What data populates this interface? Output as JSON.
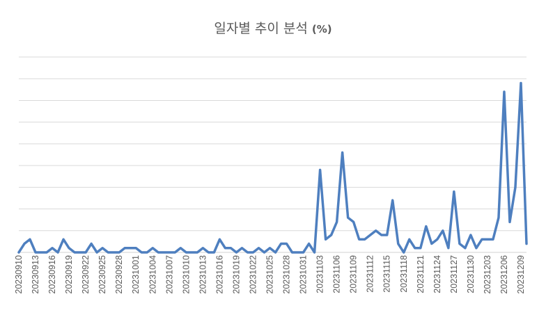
{
  "chart_data": {
    "type": "line",
    "title": "일자별 추이 분석",
    "title_unit": "(%)",
    "xlabel": "",
    "ylabel": "",
    "ylim": [
      0,
      9
    ],
    "grid": true,
    "gridlines": 9,
    "line_color": "#4e7fbf",
    "tick_labels": [
      "20230910",
      "20230913",
      "20230916",
      "20230919",
      "20230922",
      "20230925",
      "20230928",
      "20231001",
      "20231004",
      "20231007",
      "20231010",
      "20231013",
      "20231016",
      "20231019",
      "20231022",
      "20231025",
      "20231028",
      "20231031",
      "20231103",
      "20231106",
      "20231109",
      "20231112",
      "20231115",
      "20231118",
      "20231121",
      "20231124",
      "20231127",
      "20231130",
      "20231203",
      "20231206",
      "20231209"
    ],
    "series": [
      {
        "values": [
          0,
          0.4,
          0.6,
          0,
          0,
          0,
          0.2,
          0,
          0.6,
          0.2,
          0,
          0,
          0,
          0.4,
          0,
          0.2,
          0,
          0,
          0,
          0.2,
          0.2,
          0.2,
          0,
          0,
          0.2,
          0,
          0,
          0,
          0,
          0.2,
          0,
          0,
          0,
          0.2,
          0,
          0,
          0.6,
          0.2,
          0.2,
          0,
          0.2,
          0,
          0,
          0.2,
          0,
          0.2,
          0,
          0.4,
          0.4,
          0,
          0,
          0,
          0.4,
          0,
          3.8,
          0.6,
          0.8,
          1.4,
          4.6,
          1.6,
          1.4,
          0.6,
          0.6,
          0.8,
          1.0,
          0.8,
          0.8,
          2.4,
          0.4,
          0,
          0.6,
          0.2,
          0.2,
          1.2,
          0.4,
          0.6,
          1.0,
          0.2,
          2.8,
          0.4,
          0.2,
          0.8,
          0.2,
          0.6,
          0.6,
          0.6,
          1.6,
          7.4,
          1.4,
          3.0,
          7.8,
          0.4
        ]
      }
    ]
  }
}
